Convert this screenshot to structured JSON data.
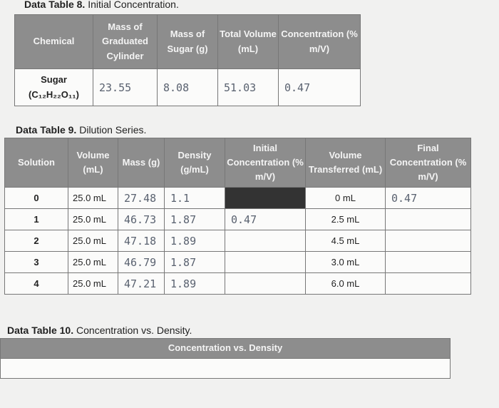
{
  "table8": {
    "caption_label": "Data Table 8.",
    "caption_text": "Initial Concentration.",
    "headers": [
      "Chemical",
      "Mass of Graduated Cylinder",
      "Mass of Sugar (g)",
      "Total Volume (mL)",
      "Concentration (% m/V)"
    ],
    "row": {
      "chemical": "Sugar",
      "formula": "(C₁₂H₂₂O₁₁)",
      "values": [
        "23.55",
        "8.08",
        "51.03",
        "0.47"
      ]
    }
  },
  "table9": {
    "caption_label": "Data Table 9.",
    "caption_text": "Dilution Series.",
    "headers": [
      "Solution",
      "Volume (mL)",
      "Mass (g)",
      "Density (g/mL)",
      "Initial Concentration (% m/V)",
      "Volume Transferred (mL)",
      "Final Concentration (% m/V)"
    ],
    "rows": [
      [
        "0",
        "25.0 mL",
        "27.48",
        "1.1",
        null,
        "0 mL",
        "0.47"
      ],
      [
        "1",
        "25.0 mL",
        "46.73",
        "1.87",
        "0.47",
        "2.5 mL",
        null
      ],
      [
        "2",
        "25.0 mL",
        "47.18",
        "1.89",
        null,
        "4.5 mL",
        null
      ],
      [
        "3",
        "25.0 mL",
        "46.79",
        "1.87",
        null,
        "3.0 mL",
        null
      ],
      [
        "4",
        "25.0 mL",
        "47.21",
        "1.89",
        null,
        "6.0 mL",
        null
      ]
    ]
  },
  "table10": {
    "caption_label": "Data Table 10.",
    "caption_text": "Concentration vs. Density.",
    "header": "Concentration vs. Density"
  }
}
